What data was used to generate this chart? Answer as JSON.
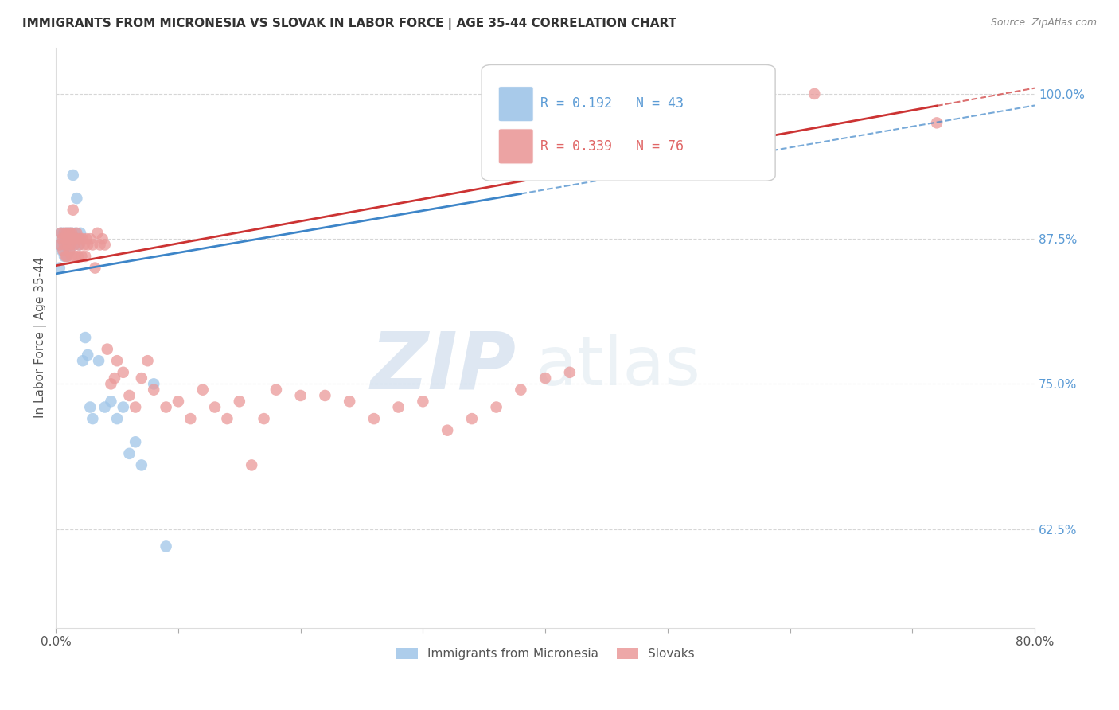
{
  "title": "IMMIGRANTS FROM MICRONESIA VS SLOVAK IN LABOR FORCE | AGE 35-44 CORRELATION CHART",
  "source": "Source: ZipAtlas.com",
  "ylabel": "In Labor Force | Age 35-44",
  "xlim": [
    0.0,
    0.8
  ],
  "ylim": [
    0.54,
    1.04
  ],
  "yticks_right": [
    0.625,
    0.75,
    0.875,
    1.0
  ],
  "ytick_right_labels": [
    "62.5%",
    "75.0%",
    "87.5%",
    "100.0%"
  ],
  "r_blue": 0.192,
  "n_blue": 43,
  "r_pink": 0.339,
  "n_pink": 76,
  "blue_color": "#9fc5e8",
  "pink_color": "#ea9999",
  "blue_line_color": "#3d85c8",
  "pink_line_color": "#cc3333",
  "legend_label_blue": "Immigrants from Micronesia",
  "legend_label_pink": "Slovaks",
  "watermark_zip": "ZIP",
  "watermark_atlas": "atlas",
  "background_color": "#ffffff",
  "grid_color": "#cccccc",
  "blue_x": [
    0.002,
    0.003,
    0.004,
    0.005,
    0.005,
    0.006,
    0.006,
    0.007,
    0.007,
    0.008,
    0.008,
    0.009,
    0.009,
    0.01,
    0.01,
    0.011,
    0.011,
    0.012,
    0.012,
    0.013,
    0.014,
    0.015,
    0.016,
    0.017,
    0.018,
    0.019,
    0.02,
    0.022,
    0.024,
    0.026,
    0.028,
    0.03,
    0.035,
    0.04,
    0.045,
    0.05,
    0.055,
    0.06,
    0.065,
    0.07,
    0.08,
    0.09,
    0.38
  ],
  "blue_y": [
    0.87,
    0.85,
    0.88,
    0.865,
    0.875,
    0.87,
    0.88,
    0.86,
    0.875,
    0.865,
    0.87,
    0.88,
    0.86,
    0.87,
    0.875,
    0.865,
    0.88,
    0.87,
    0.875,
    0.88,
    0.93,
    0.87,
    0.88,
    0.91,
    0.875,
    0.87,
    0.88,
    0.77,
    0.79,
    0.775,
    0.73,
    0.72,
    0.77,
    0.73,
    0.735,
    0.72,
    0.73,
    0.69,
    0.7,
    0.68,
    0.75,
    0.61,
    0.93
  ],
  "pink_x": [
    0.003,
    0.004,
    0.005,
    0.006,
    0.007,
    0.007,
    0.008,
    0.008,
    0.009,
    0.009,
    0.01,
    0.01,
    0.011,
    0.011,
    0.012,
    0.012,
    0.013,
    0.013,
    0.014,
    0.015,
    0.015,
    0.016,
    0.016,
    0.017,
    0.018,
    0.018,
    0.019,
    0.02,
    0.021,
    0.022,
    0.023,
    0.024,
    0.025,
    0.026,
    0.028,
    0.03,
    0.032,
    0.034,
    0.036,
    0.038,
    0.04,
    0.042,
    0.045,
    0.048,
    0.05,
    0.055,
    0.06,
    0.065,
    0.07,
    0.075,
    0.08,
    0.09,
    0.1,
    0.11,
    0.12,
    0.13,
    0.14,
    0.15,
    0.16,
    0.17,
    0.18,
    0.2,
    0.22,
    0.24,
    0.26,
    0.28,
    0.3,
    0.32,
    0.34,
    0.36,
    0.38,
    0.4,
    0.42,
    0.58,
    0.62,
    0.72
  ],
  "pink_y": [
    0.87,
    0.88,
    0.875,
    0.865,
    0.87,
    0.88,
    0.86,
    0.875,
    0.88,
    0.86,
    0.87,
    0.875,
    0.865,
    0.88,
    0.87,
    0.875,
    0.88,
    0.86,
    0.9,
    0.875,
    0.87,
    0.86,
    0.875,
    0.88,
    0.875,
    0.86,
    0.87,
    0.875,
    0.86,
    0.875,
    0.87,
    0.86,
    0.875,
    0.87,
    0.875,
    0.87,
    0.85,
    0.88,
    0.87,
    0.875,
    0.87,
    0.78,
    0.75,
    0.755,
    0.77,
    0.76,
    0.74,
    0.73,
    0.755,
    0.77,
    0.745,
    0.73,
    0.735,
    0.72,
    0.745,
    0.73,
    0.72,
    0.735,
    0.68,
    0.72,
    0.745,
    0.74,
    0.74,
    0.735,
    0.72,
    0.73,
    0.735,
    0.71,
    0.72,
    0.73,
    0.745,
    0.755,
    0.76,
    0.975,
    1.0,
    0.975
  ]
}
